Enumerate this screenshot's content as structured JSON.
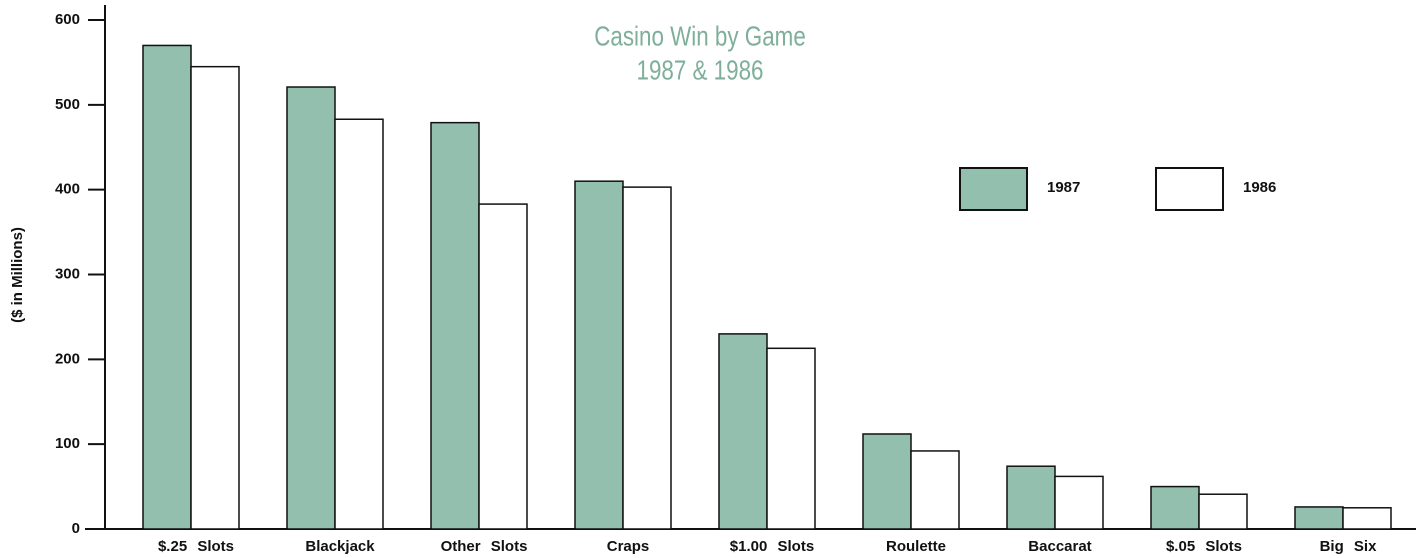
{
  "chart_data": {
    "type": "bar",
    "title": "Casino Win by Game",
    "subtitle": "1987 & 1986",
    "y_label": "($ in Millions)",
    "categories": [
      "$.25 Slots",
      "Blackjack",
      "Other Slots",
      "Craps",
      "$1.00 Slots",
      "Roulette",
      "Baccarat",
      "$.05 Slots",
      "Big Six"
    ],
    "series": [
      {
        "name": "1987",
        "color": "#93bfae",
        "values": [
          570,
          521,
          479,
          410,
          230,
          112,
          74,
          50,
          26
        ]
      },
      {
        "name": "1986",
        "color": "#ffffff",
        "values": [
          545,
          483,
          383,
          403,
          213,
          92,
          62,
          41,
          25
        ]
      }
    ],
    "ylim": [
      0,
      600
    ],
    "yticks": [
      0,
      100,
      200,
      300,
      400,
      500,
      600
    ]
  }
}
